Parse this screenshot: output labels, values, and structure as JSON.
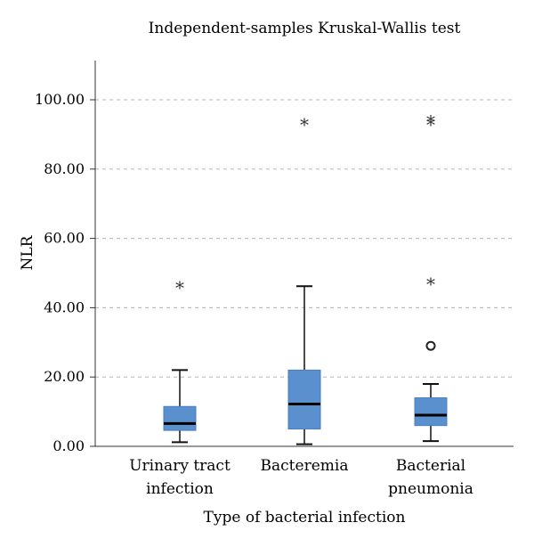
{
  "chart_data": {
    "type": "boxplot",
    "title": "Independent-samples Kruskal-Wallis test",
    "xlabel": "Type of bacterial infection",
    "ylabel": "NLR",
    "ylim": [
      0,
      110
    ],
    "yticks": [
      0,
      20,
      40,
      60,
      80,
      100
    ],
    "ytick_labels": [
      "0.00",
      "20.00",
      "40.00",
      "60.00",
      "80.00",
      "100.00"
    ],
    "grid": "horizontal-dashed",
    "box_color": "#5b90cf",
    "groups": [
      {
        "label_lines": [
          "Urinary tract",
          "infection"
        ],
        "min": 1.2,
        "q1": 4.6,
        "median": 6.6,
        "q3": 11.5,
        "max": 22.0,
        "mild_outliers": [],
        "extreme_outliers": [
          46.0
        ]
      },
      {
        "label_lines": [
          "Bacteremia"
        ],
        "min": 0.6,
        "q1": 5.0,
        "median": 12.2,
        "q3": 22.0,
        "max": 46.2,
        "mild_outliers": [],
        "extreme_outliers": [
          93.0
        ]
      },
      {
        "label_lines": [
          "Bacterial",
          "pneumonia"
        ],
        "min": 1.5,
        "q1": 6.0,
        "median": 9.0,
        "q3": 14.0,
        "max": 18.0,
        "mild_outliers": [
          29.0
        ],
        "extreme_outliers": [
          47.0,
          93.0,
          94.0
        ]
      }
    ]
  }
}
